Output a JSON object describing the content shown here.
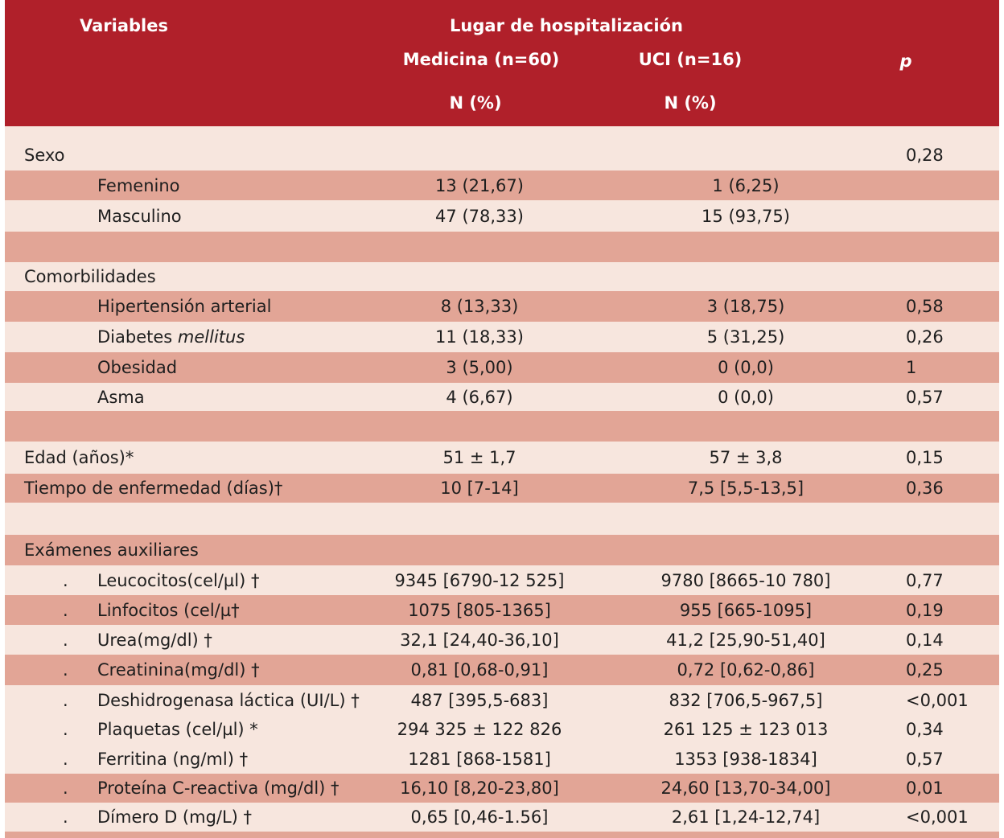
{
  "header": {
    "variables": "Variables",
    "lugar": "Lugar de hospitalización",
    "medicina": "Medicina (n=60)",
    "uci": "UCI (n=16)",
    "p": "p",
    "n_med": "N (%)",
    "n_uci": "N (%)"
  },
  "rows": [
    {
      "type": "section",
      "label": "Sexo",
      "med": "",
      "uci": "",
      "p": "0,28"
    },
    {
      "type": "sub",
      "label": "Femenino",
      "med": "13 (21,67)",
      "uci": "1 (6,25)",
      "p": ""
    },
    {
      "type": "sub",
      "label": "Masculino",
      "med": "47 (78,33)",
      "uci": "15 (93,75)",
      "p": ""
    },
    {
      "type": "gap"
    },
    {
      "type": "section",
      "label": "Comorbilidades",
      "med": "",
      "uci": "",
      "p": ""
    },
    {
      "type": "sub",
      "label": "Hipertensión arterial",
      "med": "8 (13,33)",
      "uci": "3 (18,75)",
      "p": "0,58"
    },
    {
      "type": "sub",
      "label": "Diabetes ",
      "label_italic": "mellitus",
      "med": "11 (18,33)",
      "uci": "5 (31,25)",
      "p": "0,26"
    },
    {
      "type": "sub",
      "label": "Obesidad",
      "med": "3 (5,00)",
      "uci": "0 (0,0)",
      "p": "1"
    },
    {
      "type": "sub",
      "label": "Asma",
      "med": "4 (6,67)",
      "uci": "0 (0,0)",
      "p": "0,57"
    },
    {
      "type": "gap"
    },
    {
      "type": "section",
      "label": "Edad (años)*",
      "med": "51 ± 1,7",
      "uci": "57 ± 3,8",
      "p": "0,15"
    },
    {
      "type": "section",
      "label": "Tiempo de enfermedad (días)†",
      "med": "10 [7-14]",
      "uci": "7,5 [5,5-13,5]",
      "p": "0,36"
    },
    {
      "type": "gap"
    },
    {
      "type": "section",
      "label": "Exámenes auxiliares",
      "med": "",
      "uci": "",
      "p": ""
    },
    {
      "type": "bullet",
      "bullet": ".",
      "label": "Leucocitos(cel/µl) †",
      "med": "9345 [6790-12 525]",
      "uci": "9780 [8665-10 780]",
      "p": "0,77"
    },
    {
      "type": "bullet",
      "bullet": ".",
      "label": "Linfocitos (cel/µ†",
      "med": "1075 [805-1365]",
      "uci": "955 [665-1095]",
      "p": "0,19"
    },
    {
      "type": "bullet",
      "bullet": ".",
      "label": "Urea(mg/dl) †",
      "med": "32,1 [24,40-36,10]",
      "uci": "41,2 [25,90-51,40]",
      "p": "0,14"
    },
    {
      "type": "bullet",
      "bullet": ".",
      "label": "Creatinina(mg/dl) †",
      "med": "0,81 [0,68-0,91]",
      "uci": "0,72 [0,62-0,86]",
      "p": "0,25"
    },
    {
      "type": "bullet",
      "bullet": ".",
      "label": "Deshidrogenasa láctica (UI/L) †",
      "med": "487 [395,5-683]",
      "uci": "832 [706,5-967,5]",
      "p": "<0,001"
    },
    {
      "type": "bullet",
      "bullet": ".",
      "label": "Plaquetas (cel/µl) *",
      "med": "294 325 ± 122 826",
      "uci": "261 125 ± 123 013",
      "p": "0,34"
    },
    {
      "type": "bullet",
      "bullet": ".",
      "label": "Ferritina (ng/ml) †",
      "med": "1281 [868-1581]",
      "uci": "1353 [938-1834]",
      "p": "0,57"
    },
    {
      "type": "bullet",
      "bullet": ".",
      "label": "Proteína C-reactiva (mg/dl) †",
      "med": "16,10 [8,20-23,80]",
      "uci": "24,60 [13,70-34,00]",
      "p": "0,01"
    },
    {
      "type": "bullet",
      "bullet": ".",
      "label": "Dímero D (mg/L) †",
      "med": "0,65 [0,46-1.56]",
      "uci": "2,61 [1,24-12,74]",
      "p": "<0,001"
    }
  ]
}
